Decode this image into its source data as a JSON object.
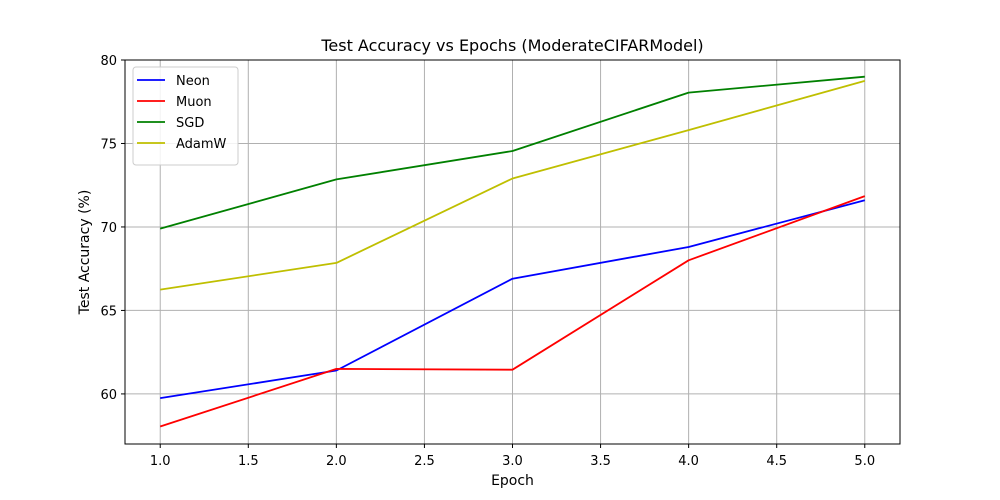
{
  "chart_data": {
    "type": "line",
    "title": "Test Accuracy vs Epochs (ModerateCIFARModel)",
    "xlabel": "Epoch",
    "ylabel": "Test Accuracy (%)",
    "xlim": [
      0.8,
      5.2
    ],
    "ylim": [
      57.0,
      80.0
    ],
    "xticks": [
      1.0,
      1.5,
      2.0,
      2.5,
      3.0,
      3.5,
      4.0,
      4.5,
      5.0
    ],
    "xtick_labels": [
      "1.0",
      "1.5",
      "2.0",
      "2.5",
      "3.0",
      "3.5",
      "4.0",
      "4.5",
      "5.0"
    ],
    "yticks": [
      60,
      65,
      70,
      75,
      80
    ],
    "ytick_labels": [
      "60",
      "65",
      "70",
      "75",
      "80"
    ],
    "grid": true,
    "legend_position": "top-left",
    "x": [
      1,
      2,
      3,
      4,
      5
    ],
    "series": [
      {
        "name": "Neon",
        "color": "#0000ff",
        "values": [
          59.75,
          61.4,
          66.9,
          68.8,
          71.6
        ]
      },
      {
        "name": "Muon",
        "color": "#ff0000",
        "values": [
          58.05,
          61.5,
          61.45,
          68.0,
          71.85
        ]
      },
      {
        "name": "SGD",
        "color": "#008000",
        "values": [
          69.9,
          72.85,
          74.55,
          78.05,
          79.0
        ]
      },
      {
        "name": "AdamW",
        "color": "#bfbf00",
        "values": [
          66.25,
          67.85,
          72.9,
          75.8,
          78.75
        ]
      }
    ]
  }
}
